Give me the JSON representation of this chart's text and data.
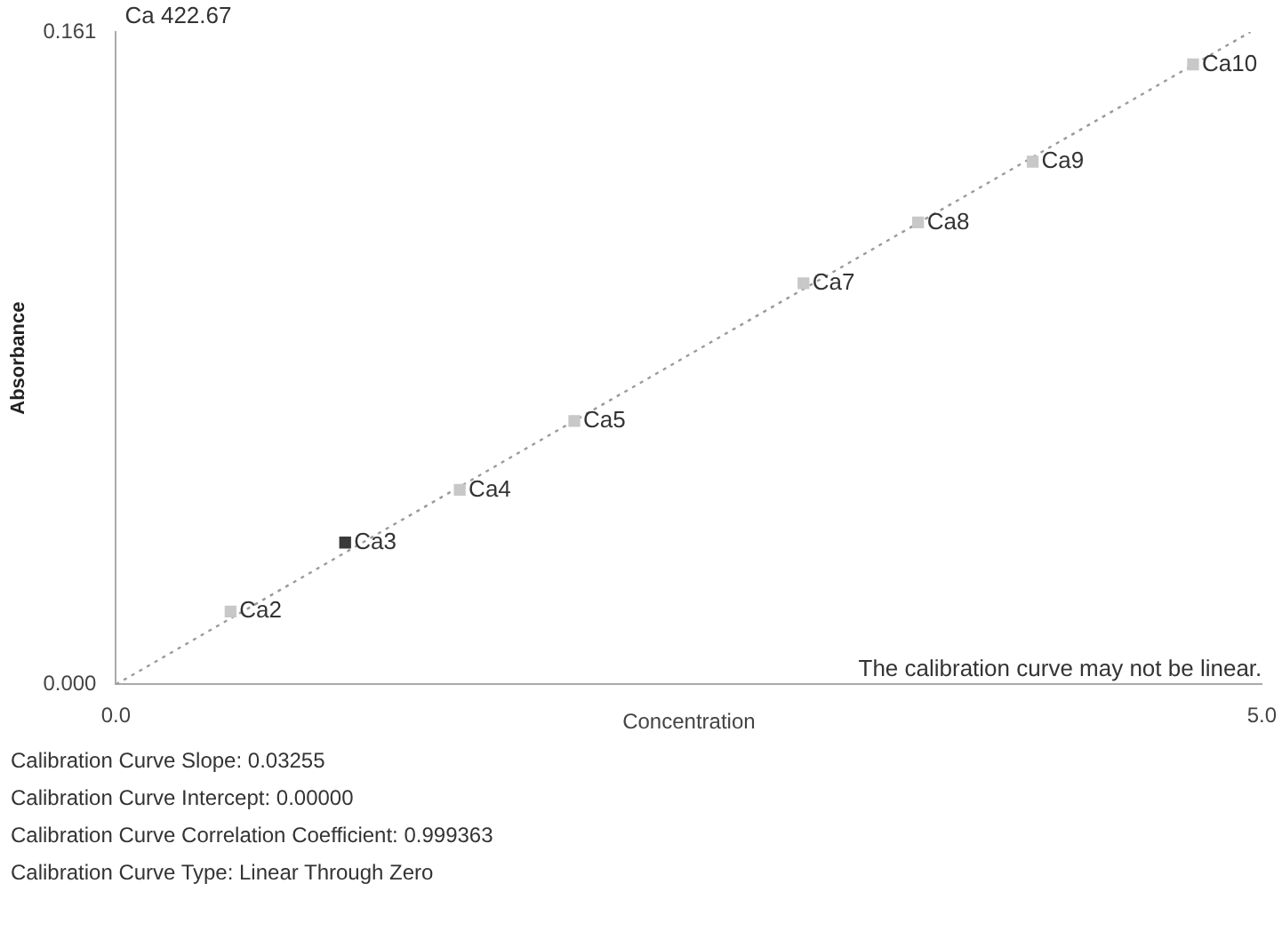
{
  "chart_data": {
    "type": "scatter",
    "title": "Ca 422.67",
    "xlabel": "Concentration",
    "ylabel": "Absorbance",
    "xlim": [
      0,
      5
    ],
    "ylim": [
      0,
      0.161
    ],
    "xticks": [
      {
        "value": 0,
        "label": "0.0"
      },
      {
        "value": 5,
        "label": "5.0"
      }
    ],
    "yticks": [
      {
        "value": 0,
        "label": "0.000"
      },
      {
        "value": 0.161,
        "label": "0.161"
      }
    ],
    "grid": false,
    "legend": false,
    "marker": "square",
    "series": [
      {
        "type": "scatter",
        "x": [
          0.5,
          1.0,
          1.5,
          2.0,
          3.0,
          3.5,
          4.0,
          4.7
        ],
        "values": [
          0.018,
          0.035,
          0.048,
          0.065,
          0.099,
          0.114,
          0.129,
          0.153
        ],
        "colors": [
          "#c8c8c8",
          "#3a3a3a",
          "#c8c8c8",
          "#c8c8c8",
          "#c8c8c8",
          "#c8c8c8",
          "#c8c8c8",
          "#c8c8c8"
        ]
      },
      {
        "type": "line",
        "x": [
          0,
          4.95
        ],
        "values": [
          0,
          0.161
        ],
        "color": "#9a9a9a",
        "line_style": "dotted",
        "marker": "none"
      }
    ],
    "annotations": [
      {
        "text": "Ca2",
        "x": 0.5,
        "y": 0.018
      },
      {
        "text": "Ca3",
        "x": 1.0,
        "y": 0.035
      },
      {
        "text": "Ca4",
        "x": 1.5,
        "y": 0.048
      },
      {
        "text": "Ca5",
        "x": 2.0,
        "y": 0.065
      },
      {
        "text": "Ca7",
        "x": 3.0,
        "y": 0.099
      },
      {
        "text": "Ca8",
        "x": 3.5,
        "y": 0.114
      },
      {
        "text": "Ca9",
        "x": 4.0,
        "y": 0.129
      },
      {
        "text": "Ca10",
        "x": 4.7,
        "y": 0.153
      },
      "The calibration curve may not be linear.",
      "Calibration Curve Slope:  0.03255",
      "Calibration Curve Intercept:  0.00000",
      "Calibration Curve Correlation Coefficient:  0.999363",
      "Calibration Curve Type:  Linear Through Zero"
    ]
  }
}
